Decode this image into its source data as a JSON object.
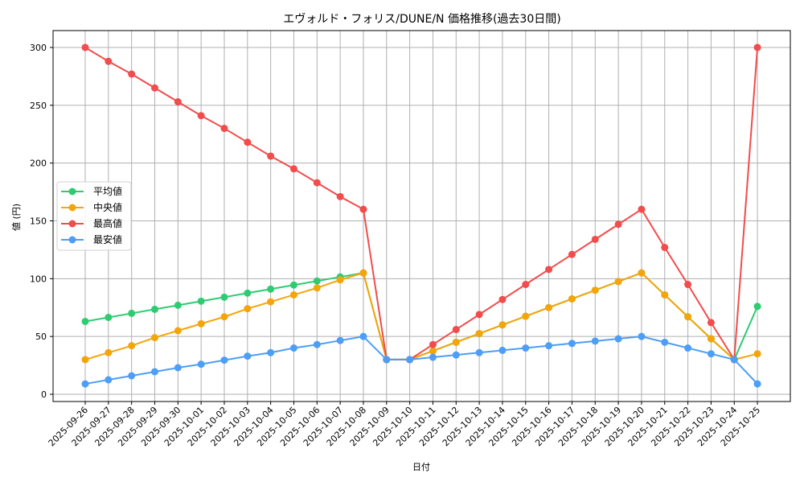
{
  "chart_data": {
    "type": "line",
    "title": "エヴォルド・フォリス/DUNE/N 価格推移(過去30日間)",
    "xlabel": "日付",
    "ylabel": "値 (円)",
    "ylim": [
      -8,
      315
    ],
    "yticks": [
      0,
      50,
      100,
      150,
      200,
      250,
      300
    ],
    "grid": true,
    "legend_position": "center left",
    "categories": [
      "2025-09-26",
      "2025-09-27",
      "2025-09-28",
      "2025-09-29",
      "2025-09-30",
      "2025-10-01",
      "2025-10-02",
      "2025-10-03",
      "2025-10-04",
      "2025-10-05",
      "2025-10-06",
      "2025-10-07",
      "2025-10-08",
      "2025-10-09",
      "2025-10-10",
      "2025-10-11",
      "2025-10-12",
      "2025-10-13",
      "2025-10-14",
      "2025-10-15",
      "2025-10-16",
      "2025-10-17",
      "2025-10-18",
      "2025-10-19",
      "2025-10-20",
      "2025-10-21",
      "2025-10-22",
      "2025-10-23",
      "2025-10-24",
      "2025-10-25"
    ],
    "series": [
      {
        "name": "平均値",
        "color": "#2ecc71",
        "values": [
          63,
          66.5,
          70,
          73.5,
          77,
          80.5,
          84,
          87.5,
          91,
          94.5,
          98,
          101.5,
          105,
          30,
          30,
          37.5,
          45,
          52.5,
          60,
          67.5,
          75,
          82.5,
          90,
          97.5,
          105,
          86,
          67,
          48,
          30,
          76
        ]
      },
      {
        "name": "中央値",
        "color": "#f5a50a",
        "values": [
          30,
          36,
          42,
          49,
          55,
          61,
          67,
          74,
          80,
          86,
          92,
          99,
          105,
          30,
          30,
          37.5,
          45,
          52.5,
          60,
          67.5,
          75,
          82.5,
          90,
          97.5,
          105,
          86,
          67,
          48,
          30,
          35
        ]
      },
      {
        "name": "最高値",
        "color": "#f24c4c",
        "values": [
          300,
          288,
          277,
          265,
          253,
          241,
          230,
          218,
          206,
          195,
          183,
          171,
          160,
          30,
          30,
          43,
          56,
          69,
          82,
          95,
          108,
          121,
          134,
          147,
          160,
          127,
          95,
          62,
          30,
          300
        ]
      },
      {
        "name": "最安値",
        "color": "#4d9ef7",
        "values": [
          9,
          12.5,
          16,
          19.5,
          23,
          26,
          29.5,
          33,
          36,
          40,
          43,
          46.5,
          50,
          30,
          30,
          32,
          34,
          36,
          38,
          40,
          42,
          44,
          46,
          48,
          50,
          45,
          40,
          35,
          30,
          9
        ]
      }
    ]
  }
}
